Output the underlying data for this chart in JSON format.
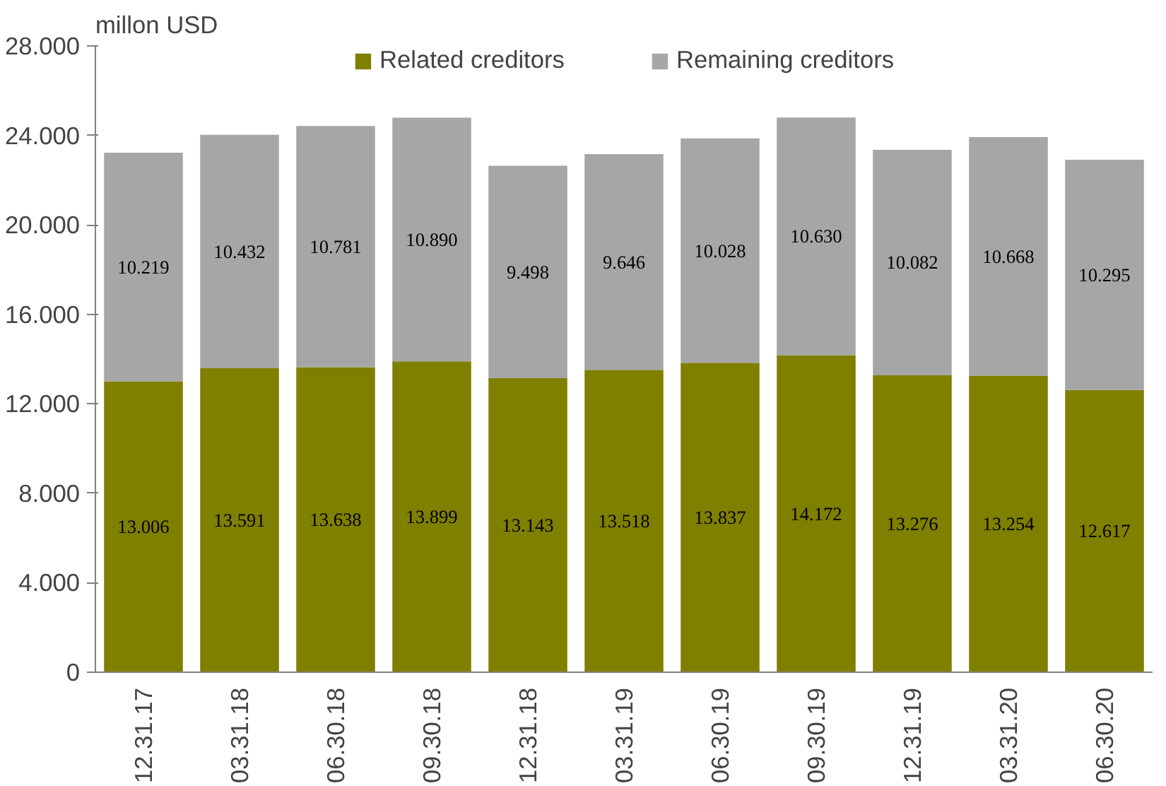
{
  "chart_data": {
    "type": "bar",
    "stacked": true,
    "ylabel": "millon USD",
    "categories": [
      "12.31.17",
      "03.31.18",
      "06.30.18",
      "09.30.18",
      "12.31.18",
      "03.31.19",
      "06.30.19",
      "09.30.19",
      "12.31.19",
      "03.31.20",
      "06.30.20"
    ],
    "series": [
      {
        "name": "Related creditors",
        "color": "#7f7f00",
        "values": [
          13006,
          13591,
          13638,
          13899,
          13143,
          13518,
          13837,
          14172,
          13276,
          13254,
          12617
        ],
        "value_labels": [
          "13.006",
          "13.591",
          "13.638",
          "13.899",
          "13.143",
          "13.518",
          "13.837",
          "14.172",
          "13.276",
          "13.254",
          "12.617"
        ]
      },
      {
        "name": "Remaining creditors",
        "color": "#a6a6a6",
        "values": [
          10219,
          10432,
          10781,
          10890,
          9498,
          9646,
          10028,
          10630,
          10082,
          10668,
          10295
        ],
        "value_labels": [
          "10.219",
          "10.432",
          "10.781",
          "10.890",
          "9.498",
          "9.646",
          "10.028",
          "10.630",
          "10.082",
          "10.668",
          "10.295"
        ]
      }
    ],
    "ylim": [
      0,
      28000
    ],
    "yticks": [
      {
        "value": 0,
        "label": "0"
      },
      {
        "value": 4000,
        "label": "4.000"
      },
      {
        "value": 8000,
        "label": "8.000"
      },
      {
        "value": 12000,
        "label": "12.000"
      },
      {
        "value": 16000,
        "label": "16.000"
      },
      {
        "value": 20000,
        "label": "20.000"
      },
      {
        "value": 24000,
        "label": "24.000"
      },
      {
        "value": 28000,
        "label": "28.000"
      }
    ],
    "grid": false,
    "legend": "top"
  }
}
